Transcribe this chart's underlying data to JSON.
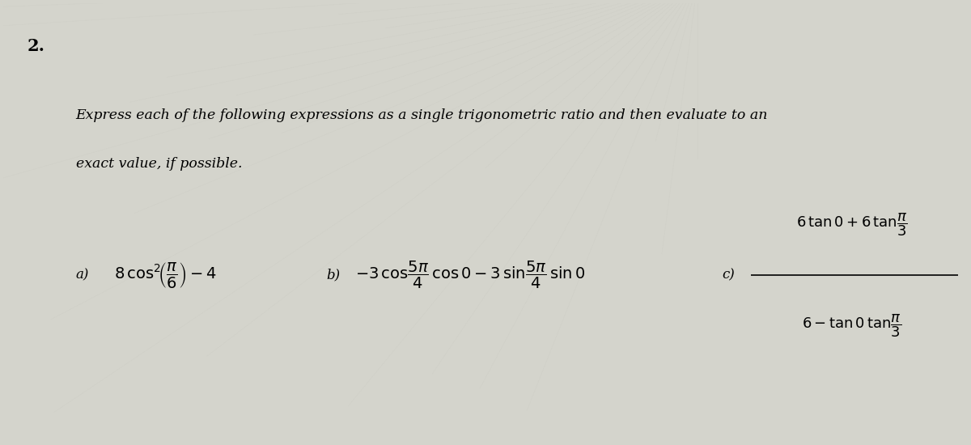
{
  "background_color": "#d8d8d0",
  "number_label": "2.",
  "number_fontsize": 15,
  "instruction_text_line1": "Express each of the following expressions as a single trigonometric ratio and then evaluate to an",
  "instruction_text_line2": "exact value, if possible.",
  "instruction_fontsize": 12.5,
  "label_fontsize": 12,
  "math_fontsize": 13
}
